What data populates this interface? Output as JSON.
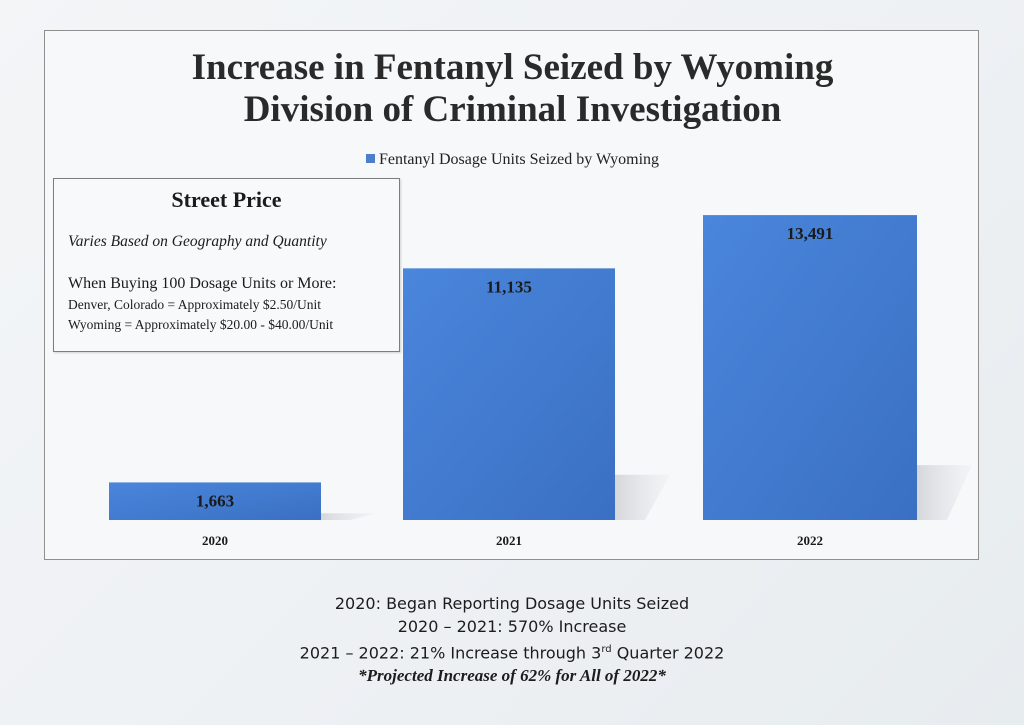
{
  "chart_data": {
    "type": "bar",
    "title_line1": "Increase in Fentanyl Seized by Wyoming",
    "title_line2": "Division of Criminal Investigation",
    "legend": "Fentanyl Dosage Units Seized by Wyoming",
    "categories": [
      "2020",
      "2021",
      "2022"
    ],
    "series": [
      {
        "name": "Fentanyl Dosage Units Seized by Wyoming",
        "values": [
          1663,
          11135,
          13491
        ]
      }
    ],
    "data_labels": [
      "1,663",
      "11,135",
      "13,491"
    ],
    "ylim": [
      0,
      15000
    ],
    "grid": false,
    "legend_position": "top-center",
    "bar_color": "#3f78cf"
  },
  "street_price": {
    "heading": "Street Price",
    "subtitle": "Varies Based on Geography and Quantity",
    "when": "When Buying 100 Dosage Units or More:",
    "line1": "Denver, Colorado = Approximately $2.50/Unit",
    "line2": "Wyoming = Approximately $20.00 - $40.00/Unit"
  },
  "notes": {
    "line1": "2020: Began Reporting Dosage Units Seized",
    "line2": "2020 – 2021: 570% Increase",
    "line3_pre": "2021 – 2022: 21% Increase through 3",
    "line3_sup": "rd",
    "line3_post": " Quarter 2022",
    "line4": "*Projected Increase of 62% for All of 2022*"
  }
}
